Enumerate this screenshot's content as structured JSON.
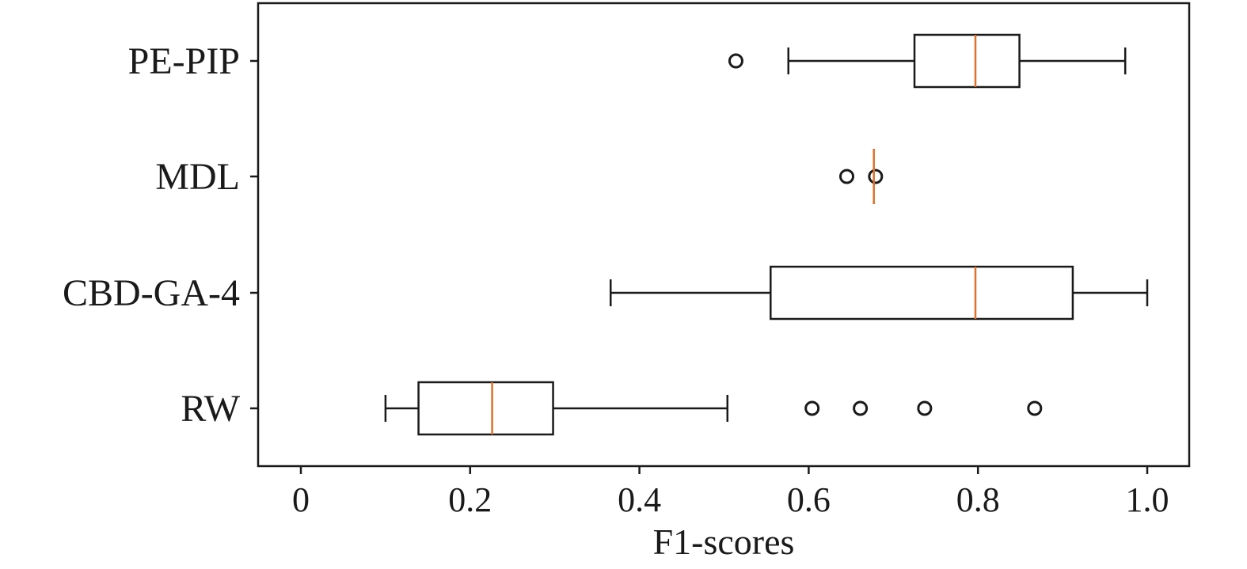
{
  "chart_data": {
    "type": "boxplot",
    "orientation": "horizontal",
    "xlabel": "F1-scores",
    "xlim": [
      -0.05,
      1.05
    ],
    "xticks": [
      0,
      0.2,
      0.4,
      0.6,
      0.8,
      1.0
    ],
    "xtick_labels": [
      "0",
      "0.2",
      "0.4",
      "0.6",
      "0.8",
      "1.0"
    ],
    "grid": false,
    "colors": {
      "box": "#1a1a1a",
      "median": "#e0702a"
    },
    "categories": [
      "PE-PIP",
      "MDL",
      "CBD-GA-4",
      "RW"
    ],
    "boxes": [
      {
        "label": "PE-PIP",
        "whislo": 0.576,
        "q1": 0.725,
        "med": 0.797,
        "q3": 0.849,
        "whishi": 0.974,
        "fliers": [
          0.514
        ]
      },
      {
        "label": "MDL",
        "whislo": 0.677,
        "q1": 0.677,
        "med": 0.677,
        "q3": 0.677,
        "whishi": 0.677,
        "fliers": [
          0.645,
          0.679
        ]
      },
      {
        "label": "CBD-GA-4",
        "whislo": 0.366,
        "q1": 0.555,
        "med": 0.797,
        "q3": 0.912,
        "whishi": 1.0,
        "fliers": []
      },
      {
        "label": "RW",
        "whislo": 0.1,
        "q1": 0.139,
        "med": 0.226,
        "q3": 0.298,
        "whishi": 0.504,
        "fliers": [
          0.604,
          0.661,
          0.737,
          0.867
        ]
      }
    ]
  }
}
